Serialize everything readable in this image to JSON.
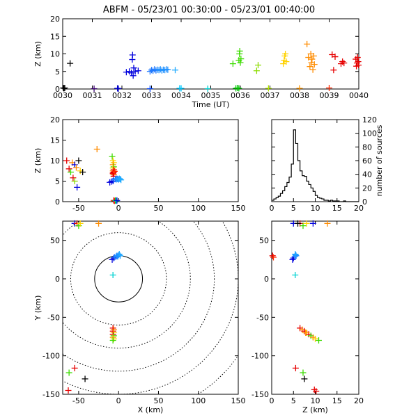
{
  "title": "ABFM - 05/23/01 00:30:00 - 05/23/01 00:40:00",
  "colors": {
    "axis": "#000000",
    "range_rings": "#000000"
  },
  "chart_data": [
    {
      "id": "time_height",
      "type": "scatter",
      "xlabel": "Time (UT)",
      "ylabel": "Z (km)",
      "xlim": [
        0,
        10
      ],
      "ylim": [
        0,
        20
      ],
      "xticks": [
        "0030",
        "0031",
        "0032",
        "0033",
        "0034",
        "0035",
        "0036",
        "0037",
        "0038",
        "0039",
        "0040"
      ],
      "yticks": [
        "0",
        "5",
        "10",
        "15",
        "20"
      ],
      "points": [
        {
          "x": 0.02,
          "y": 0.3,
          "c": "#000000"
        },
        {
          "x": 0.04,
          "y": 0.2,
          "c": "#000000"
        },
        {
          "x": 0.07,
          "y": 0.3,
          "c": "#000000"
        },
        {
          "x": 0.25,
          "y": 7.3,
          "c": "#000000"
        },
        {
          "x": 1.06,
          "y": 0.1,
          "c": "#3a0070"
        },
        {
          "x": 1.85,
          "y": 0.2,
          "c": "#0000c8"
        },
        {
          "x": 1.88,
          "y": 0.1,
          "c": "#0000c8"
        },
        {
          "x": 2.15,
          "y": 4.8,
          "c": "#0000dd"
        },
        {
          "x": 2.25,
          "y": 5.0,
          "c": "#0000dd"
        },
        {
          "x": 2.32,
          "y": 4.6,
          "c": "#0000dd"
        },
        {
          "x": 2.35,
          "y": 8.4,
          "c": "#0000dd"
        },
        {
          "x": 2.36,
          "y": 9.7,
          "c": "#0000dd"
        },
        {
          "x": 2.38,
          "y": 3.8,
          "c": "#0000dd"
        },
        {
          "x": 2.4,
          "y": 6.0,
          "c": "#0000dd"
        },
        {
          "x": 2.45,
          "y": 5.0,
          "c": "#0000dd"
        },
        {
          "x": 2.55,
          "y": 5.2,
          "c": "#0000dd"
        },
        {
          "x": 2.95,
          "y": 0.1,
          "c": "#0046ff"
        },
        {
          "x": 2.95,
          "y": 5.0,
          "c": "#1e78ff"
        },
        {
          "x": 3.0,
          "y": 5.4,
          "c": "#1e78ff"
        },
        {
          "x": 3.05,
          "y": 5.2,
          "c": "#1e78ff"
        },
        {
          "x": 3.1,
          "y": 5.6,
          "c": "#1e78ff"
        },
        {
          "x": 3.15,
          "y": 5.3,
          "c": "#1e78ff"
        },
        {
          "x": 3.2,
          "y": 5.5,
          "c": "#1e90ff"
        },
        {
          "x": 3.25,
          "y": 5.4,
          "c": "#1e90ff"
        },
        {
          "x": 3.3,
          "y": 5.6,
          "c": "#1e90ff"
        },
        {
          "x": 3.35,
          "y": 5.3,
          "c": "#1e90ff"
        },
        {
          "x": 3.4,
          "y": 5.5,
          "c": "#1e90ff"
        },
        {
          "x": 3.45,
          "y": 5.4,
          "c": "#1e90ff"
        },
        {
          "x": 3.5,
          "y": 5.6,
          "c": "#1e90ff"
        },
        {
          "x": 3.55,
          "y": 5.5,
          "c": "#1e90ff"
        },
        {
          "x": 3.8,
          "y": 5.4,
          "c": "#1eaaff"
        },
        {
          "x": 3.95,
          "y": 0.2,
          "c": "#00c8ff"
        },
        {
          "x": 4.0,
          "y": 0.2,
          "c": "#00c8ff"
        },
        {
          "x": 4.9,
          "y": 0.1,
          "c": "#00d2d2"
        },
        {
          "x": 5.85,
          "y": 0.2,
          "c": "#00c800"
        },
        {
          "x": 5.9,
          "y": 0.3,
          "c": "#00c800"
        },
        {
          "x": 5.95,
          "y": 0.2,
          "c": "#00c800"
        },
        {
          "x": 5.75,
          "y": 7.2,
          "c": "#3cdc00"
        },
        {
          "x": 5.95,
          "y": 8.2,
          "c": "#3cdc00"
        },
        {
          "x": 5.97,
          "y": 10.0,
          "c": "#3cdc00"
        },
        {
          "x": 5.98,
          "y": 10.8,
          "c": "#3cdc00"
        },
        {
          "x": 6.0,
          "y": 7.5,
          "c": "#3cdc00"
        },
        {
          "x": 6.02,
          "y": 8.6,
          "c": "#3cdc00"
        },
        {
          "x": 6.55,
          "y": 5.2,
          "c": "#8cdc00"
        },
        {
          "x": 6.6,
          "y": 6.8,
          "c": "#8cdc00"
        },
        {
          "x": 6.95,
          "y": 0.2,
          "c": "#b4e600"
        },
        {
          "x": 7.45,
          "y": 7.2,
          "c": "#ffd200"
        },
        {
          "x": 7.48,
          "y": 8.2,
          "c": "#ffd200"
        },
        {
          "x": 7.5,
          "y": 9.4,
          "c": "#ffd200"
        },
        {
          "x": 7.52,
          "y": 10.0,
          "c": "#ffd200"
        },
        {
          "x": 7.55,
          "y": 7.8,
          "c": "#ffd200"
        },
        {
          "x": 8.0,
          "y": 0.2,
          "c": "#ff9600"
        },
        {
          "x": 8.25,
          "y": 12.8,
          "c": "#ff8c00"
        },
        {
          "x": 8.3,
          "y": 9.0,
          "c": "#ff8c00"
        },
        {
          "x": 8.35,
          "y": 6.4,
          "c": "#ff8c00"
        },
        {
          "x": 8.38,
          "y": 10.0,
          "c": "#ff8c00"
        },
        {
          "x": 8.4,
          "y": 7.5,
          "c": "#ff8c00"
        },
        {
          "x": 8.42,
          "y": 8.5,
          "c": "#ff8c00"
        },
        {
          "x": 8.45,
          "y": 5.5,
          "c": "#ff8c00"
        },
        {
          "x": 8.48,
          "y": 9.4,
          "c": "#ff8c00"
        },
        {
          "x": 8.5,
          "y": 7.0,
          "c": "#ff8c00"
        },
        {
          "x": 9.0,
          "y": 0.3,
          "c": "#ff2800"
        },
        {
          "x": 9.1,
          "y": 9.8,
          "c": "#e60000"
        },
        {
          "x": 9.15,
          "y": 5.4,
          "c": "#e60000"
        },
        {
          "x": 9.2,
          "y": 9.2,
          "c": "#e60000"
        },
        {
          "x": 9.4,
          "y": 7.2,
          "c": "#e60000"
        },
        {
          "x": 9.45,
          "y": 7.8,
          "c": "#e60000"
        },
        {
          "x": 9.5,
          "y": 7.4,
          "c": "#e60000"
        },
        {
          "x": 9.9,
          "y": 8.5,
          "c": "#e60000"
        },
        {
          "x": 9.92,
          "y": 6.5,
          "c": "#e60000"
        },
        {
          "x": 9.94,
          "y": 7.4,
          "c": "#e60000"
        },
        {
          "x": 9.96,
          "y": 9.0,
          "c": "#e60000"
        },
        {
          "x": 9.98,
          "y": 7.8,
          "c": "#e60000"
        },
        {
          "x": 9.99,
          "y": 6.8,
          "c": "#e60000"
        }
      ]
    },
    {
      "id": "x_z",
      "type": "scatter",
      "ylabel": "Z (km)",
      "xlim": [
        -70,
        150
      ],
      "ylim": [
        0,
        20
      ],
      "xticks": [
        "-50",
        "0",
        "50",
        "100",
        "150"
      ],
      "yticks": [
        "0",
        "5",
        "10",
        "15",
        "20"
      ],
      "points": [
        {
          "x": -65,
          "y": 10.0,
          "c": "#e60000"
        },
        {
          "x": -62,
          "y": 8.0,
          "c": "#e60000"
        },
        {
          "x": -58,
          "y": 9.5,
          "c": "#ff8c00"
        },
        {
          "x": -57,
          "y": 5.8,
          "c": "#e60000"
        },
        {
          "x": -60,
          "y": 7.2,
          "c": "#3cdc00"
        },
        {
          "x": -55,
          "y": 9.0,
          "c": "#0000dd"
        },
        {
          "x": -53,
          "y": 8.3,
          "c": "#ff8c00"
        },
        {
          "x": -52,
          "y": 3.5,
          "c": "#0000dd"
        },
        {
          "x": -50,
          "y": 10.0,
          "c": "#000000"
        },
        {
          "x": -48,
          "y": 7.5,
          "c": "#ffd200"
        },
        {
          "x": -45,
          "y": 7.2,
          "c": "#000000"
        },
        {
          "x": -55,
          "y": 5.0,
          "c": "#8cdc00"
        },
        {
          "x": -27,
          "y": 12.8,
          "c": "#ff8c00"
        },
        {
          "x": -8,
          "y": 11.0,
          "c": "#3cdc00"
        },
        {
          "x": -7,
          "y": 10.0,
          "c": "#ffd200"
        },
        {
          "x": -6,
          "y": 9.5,
          "c": "#ffd200"
        },
        {
          "x": -7,
          "y": 9.0,
          "c": "#ff8c00"
        },
        {
          "x": -6,
          "y": 8.5,
          "c": "#3cdc00"
        },
        {
          "x": -7,
          "y": 8.2,
          "c": "#ffd200"
        },
        {
          "x": -6,
          "y": 7.8,
          "c": "#e60000"
        },
        {
          "x": -7,
          "y": 7.5,
          "c": "#ff8c00"
        },
        {
          "x": -6,
          "y": 7.2,
          "c": "#e60000"
        },
        {
          "x": -7,
          "y": 7.0,
          "c": "#e60000"
        },
        {
          "x": -6,
          "y": 6.6,
          "c": "#ff8c00"
        },
        {
          "x": -7,
          "y": 6.8,
          "c": "#e60000"
        },
        {
          "x": -6,
          "y": 6.2,
          "c": "#e60000"
        },
        {
          "x": -5,
          "y": 7.4,
          "c": "#ff2800"
        },
        {
          "x": -11,
          "y": 4.7,
          "c": "#0000dd"
        },
        {
          "x": -9,
          "y": 4.9,
          "c": "#0000dd"
        },
        {
          "x": -7,
          "y": 5.0,
          "c": "#0000dd"
        },
        {
          "x": -6,
          "y": 5.3,
          "c": "#1e78ff"
        },
        {
          "x": -4,
          "y": 5.5,
          "c": "#1e78ff"
        },
        {
          "x": -3,
          "y": 5.4,
          "c": "#1e90ff"
        },
        {
          "x": -2,
          "y": 5.6,
          "c": "#1e90ff"
        },
        {
          "x": -1,
          "y": 5.5,
          "c": "#1e90ff"
        },
        {
          "x": 0,
          "y": 5.4,
          "c": "#1e90ff"
        },
        {
          "x": 1,
          "y": 5.6,
          "c": "#1eaaff"
        },
        {
          "x": 2,
          "y": 5.5,
          "c": "#1eaaff"
        },
        {
          "x": 3,
          "y": 5.3,
          "c": "#1eaaff"
        },
        {
          "x": -6,
          "y": 0.3,
          "c": "#e60000"
        },
        {
          "x": -5,
          "y": 0.2,
          "c": "#ff2800"
        },
        {
          "x": -4,
          "y": 0.3,
          "c": "#00c800"
        },
        {
          "x": -3,
          "y": 0.2,
          "c": "#00c8ff"
        },
        {
          "x": -2,
          "y": 0.3,
          "c": "#0000c8"
        }
      ]
    },
    {
      "id": "z_histogram",
      "type": "bar",
      "y2label": "number of sources",
      "xlim": [
        0,
        20
      ],
      "ylim": [
        0,
        120
      ],
      "xticks": [
        "0",
        "5",
        "10",
        "15",
        "20"
      ],
      "yticks": [
        "0",
        "20",
        "40",
        "60",
        "80",
        "100",
        "120"
      ],
      "bin_width": 0.5,
      "bin_start": 0,
      "counts": [
        2,
        4,
        6,
        8,
        12,
        16,
        22,
        28,
        36,
        55,
        105,
        85,
        60,
        45,
        38,
        37,
        30,
        25,
        20,
        15,
        9,
        6,
        5,
        4,
        2,
        2,
        1,
        2,
        1,
        1,
        1,
        0,
        0,
        1,
        0,
        0,
        0,
        0,
        0,
        0
      ]
    },
    {
      "id": "plan_view",
      "type": "scatter",
      "xlabel": "X (km)",
      "ylabel": "Y (km)",
      "xlim": [
        -70,
        150
      ],
      "ylim": [
        -150,
        75
      ],
      "xticks": [
        "-50",
        "0",
        "50",
        "100",
        "150"
      ],
      "yticks": [
        "-150",
        "-100",
        "-50",
        "0",
        "50"
      ],
      "range_rings_km": [
        30,
        60,
        90,
        120,
        150,
        180
      ],
      "points": [
        {
          "x": -55,
          "y": 72,
          "c": "#0000dd"
        },
        {
          "x": -52,
          "y": 72,
          "c": "#e60000"
        },
        {
          "x": -50,
          "y": 69,
          "c": "#3cdc00"
        },
        {
          "x": -48,
          "y": 72,
          "c": "#ffd200"
        },
        {
          "x": -25,
          "y": 72,
          "c": "#ff8c00"
        },
        {
          "x": -8,
          "y": 25,
          "c": "#0000dd"
        },
        {
          "x": -6,
          "y": 27,
          "c": "#0000dd"
        },
        {
          "x": -5,
          "y": 28,
          "c": "#1e78ff"
        },
        {
          "x": -3,
          "y": 29,
          "c": "#1e78ff"
        },
        {
          "x": -2,
          "y": 30,
          "c": "#1e90ff"
        },
        {
          "x": 0,
          "y": 31,
          "c": "#1e90ff"
        },
        {
          "x": 1,
          "y": 32,
          "c": "#1eaaff"
        },
        {
          "x": 2,
          "y": 30,
          "c": "#1eaaff"
        },
        {
          "x": -1,
          "y": 29,
          "c": "#1e90ff"
        },
        {
          "x": -7,
          "y": 5,
          "c": "#00d2d2"
        },
        {
          "x": -7,
          "y": -64,
          "c": "#e60000"
        },
        {
          "x": -6,
          "y": -66,
          "c": "#ff8c00"
        },
        {
          "x": -7,
          "y": -68,
          "c": "#e60000"
        },
        {
          "x": -6,
          "y": -70,
          "c": "#ffd200"
        },
        {
          "x": -7,
          "y": -72,
          "c": "#e60000"
        },
        {
          "x": -6,
          "y": -74,
          "c": "#3cdc00"
        },
        {
          "x": -7,
          "y": -76,
          "c": "#ff8c00"
        },
        {
          "x": -6,
          "y": -78,
          "c": "#ffd200"
        },
        {
          "x": -7,
          "y": -80,
          "c": "#3cdc00"
        },
        {
          "x": -55,
          "y": -116,
          "c": "#e60000"
        },
        {
          "x": -62,
          "y": -122,
          "c": "#3cdc00"
        },
        {
          "x": -42,
          "y": -130,
          "c": "#000000"
        },
        {
          "x": -63,
          "y": -145,
          "c": "#e60000"
        }
      ]
    },
    {
      "id": "z_y",
      "type": "scatter",
      "xlabel": "Z (km)",
      "xlim": [
        0,
        20
      ],
      "ylim": [
        -150,
        75
      ],
      "xticks": [
        "0",
        "5",
        "10",
        "15",
        "20"
      ],
      "yticks": [
        "-150",
        "-100",
        "-50",
        "0",
        "50"
      ],
      "points": [
        {
          "x": 5.0,
          "y": 72,
          "c": "#0000dd"
        },
        {
          "x": 6.5,
          "y": 72,
          "c": "#e60000"
        },
        {
          "x": 7.2,
          "y": 69,
          "c": "#3cdc00"
        },
        {
          "x": 8.0,
          "y": 72,
          "c": "#ffd200"
        },
        {
          "x": 9.5,
          "y": 72,
          "c": "#0000dd"
        },
        {
          "x": 12.8,
          "y": 72,
          "c": "#ff8c00"
        },
        {
          "x": 6.0,
          "y": 72,
          "c": "#000000"
        },
        {
          "x": 0.2,
          "y": 30,
          "c": "#e60000"
        },
        {
          "x": 0.4,
          "y": 28,
          "c": "#ff2800"
        },
        {
          "x": 4.8,
          "y": 25,
          "c": "#0000dd"
        },
        {
          "x": 5.0,
          "y": 27,
          "c": "#0000dd"
        },
        {
          "x": 5.3,
          "y": 29,
          "c": "#1e78ff"
        },
        {
          "x": 5.5,
          "y": 31,
          "c": "#1e90ff"
        },
        {
          "x": 5.6,
          "y": 30,
          "c": "#1e90ff"
        },
        {
          "x": 5.4,
          "y": 32,
          "c": "#1eaaff"
        },
        {
          "x": 5.4,
          "y": 5,
          "c": "#00d2d2"
        },
        {
          "x": 6.5,
          "y": -64,
          "c": "#e60000"
        },
        {
          "x": 7.0,
          "y": -66,
          "c": "#ff8c00"
        },
        {
          "x": 7.5,
          "y": -68,
          "c": "#e60000"
        },
        {
          "x": 8.0,
          "y": -70,
          "c": "#ffd200"
        },
        {
          "x": 8.5,
          "y": -72,
          "c": "#e60000"
        },
        {
          "x": 9.0,
          "y": -74,
          "c": "#3cdc00"
        },
        {
          "x": 9.5,
          "y": -76,
          "c": "#ff8c00"
        },
        {
          "x": 10.0,
          "y": -78,
          "c": "#ffd200"
        },
        {
          "x": 10.8,
          "y": -80,
          "c": "#3cdc00"
        },
        {
          "x": 7.8,
          "y": -70,
          "c": "#ff8c00"
        },
        {
          "x": 5.5,
          "y": -116,
          "c": "#e60000"
        },
        {
          "x": 7.2,
          "y": -122,
          "c": "#3cdc00"
        },
        {
          "x": 7.5,
          "y": -130,
          "c": "#000000"
        },
        {
          "x": 9.8,
          "y": -144,
          "c": "#e60000"
        },
        {
          "x": 10.2,
          "y": -146,
          "c": "#e60000"
        }
      ]
    }
  ]
}
